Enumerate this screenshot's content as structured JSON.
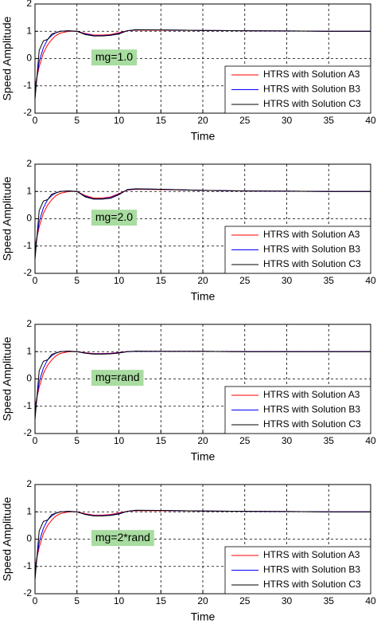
{
  "chart_data": [
    {
      "type": "line",
      "annotation": "mg=1.0",
      "xlabel": "Time",
      "ylabel": "Speed Amplitude",
      "x": [
        0,
        0.5,
        1,
        1.5,
        2,
        2.5,
        3,
        4,
        5,
        6,
        7,
        8,
        9,
        10,
        11,
        12,
        15,
        20,
        25,
        30,
        35,
        40
      ],
      "series": [
        {
          "name": "HTRS with Solution A3",
          "color": "#ff0000",
          "values": [
            -1.0,
            -0.3,
            0.2,
            0.5,
            0.7,
            0.85,
            0.93,
            1.0,
            1.0,
            0.92,
            0.86,
            0.86,
            0.88,
            0.95,
            1.02,
            1.04,
            1.04,
            1.03,
            1.02,
            1.01,
            1.0,
            1.0
          ]
        },
        {
          "name": "HTRS with Solution B3",
          "color": "#0000ff",
          "values": [
            -1.2,
            -0.1,
            0.4,
            0.7,
            0.85,
            0.95,
            1.0,
            1.02,
            1.0,
            0.9,
            0.84,
            0.84,
            0.86,
            0.92,
            1.02,
            1.05,
            1.05,
            1.03,
            1.02,
            1.01,
            1.0,
            1.0
          ]
        },
        {
          "name": "HTRS with Solution C3",
          "color": "#000000",
          "values": [
            -1.5,
            0.3,
            0.65,
            0.7,
            0.9,
            0.95,
            1.0,
            1.02,
            1.0,
            0.88,
            0.83,
            0.83,
            0.85,
            0.9,
            1.02,
            1.06,
            1.05,
            1.03,
            1.02,
            1.01,
            1.0,
            1.0
          ]
        }
      ],
      "xlim": [
        0,
        40
      ],
      "ylim": [
        -2,
        2
      ],
      "xticks": [
        0,
        5,
        10,
        15,
        20,
        25,
        30,
        35,
        40
      ],
      "yticks": [
        -2,
        -1,
        0,
        1,
        2
      ],
      "grid": true,
      "legend": "lower right"
    },
    {
      "type": "line",
      "annotation": "mg=2.0",
      "xlabel": "Time",
      "ylabel": "Speed Amplitude",
      "x": [
        0,
        0.5,
        1,
        1.5,
        2,
        2.5,
        3,
        4,
        5,
        6,
        7,
        8,
        9,
        10,
        11,
        12,
        15,
        20,
        25,
        30,
        35,
        40
      ],
      "series": [
        {
          "name": "HTRS with Solution A3",
          "color": "#ff0000",
          "values": [
            -1.0,
            -0.3,
            0.2,
            0.5,
            0.7,
            0.85,
            0.93,
            1.0,
            1.0,
            0.85,
            0.76,
            0.76,
            0.8,
            0.92,
            1.05,
            1.08,
            1.07,
            1.04,
            1.02,
            1.01,
            1.0,
            1.0
          ]
        },
        {
          "name": "HTRS with Solution B3",
          "color": "#0000ff",
          "values": [
            -1.2,
            -0.1,
            0.4,
            0.7,
            0.85,
            0.95,
            1.0,
            1.02,
            1.0,
            0.82,
            0.73,
            0.73,
            0.77,
            0.9,
            1.06,
            1.09,
            1.08,
            1.04,
            1.02,
            1.01,
            1.0,
            1.0
          ]
        },
        {
          "name": "HTRS with Solution C3",
          "color": "#000000",
          "values": [
            -1.5,
            0.3,
            0.65,
            0.7,
            0.9,
            0.95,
            1.0,
            1.02,
            1.0,
            0.8,
            0.72,
            0.72,
            0.75,
            0.88,
            1.07,
            1.1,
            1.08,
            1.04,
            1.02,
            1.01,
            1.0,
            1.0
          ]
        }
      ],
      "xlim": [
        0,
        40
      ],
      "ylim": [
        -2,
        2
      ],
      "xticks": [
        0,
        5,
        10,
        15,
        20,
        25,
        30,
        35,
        40
      ],
      "yticks": [
        -2,
        -1,
        0,
        1,
        2
      ],
      "grid": true,
      "legend": "lower right"
    },
    {
      "type": "line",
      "annotation": "mg=rand",
      "xlabel": "Time",
      "ylabel": "Speed Amplitude",
      "x": [
        0,
        0.5,
        1,
        1.5,
        2,
        2.5,
        3,
        4,
        5,
        6,
        7,
        8,
        9,
        10,
        11,
        12,
        15,
        20,
        25,
        30,
        35,
        40
      ],
      "series": [
        {
          "name": "HTRS with Solution A3",
          "color": "#ff0000",
          "values": [
            -1.0,
            -0.3,
            0.2,
            0.5,
            0.7,
            0.85,
            0.93,
            1.0,
            1.0,
            0.96,
            0.93,
            0.93,
            0.94,
            0.97,
            1.0,
            1.01,
            1.01,
            1.01,
            1.0,
            1.0,
            1.0,
            1.0
          ]
        },
        {
          "name": "HTRS with Solution B3",
          "color": "#0000ff",
          "values": [
            -1.2,
            -0.1,
            0.4,
            0.7,
            0.85,
            0.95,
            1.0,
            1.02,
            1.0,
            0.95,
            0.92,
            0.92,
            0.93,
            0.96,
            1.0,
            1.01,
            1.01,
            1.01,
            1.0,
            1.0,
            1.0,
            1.0
          ]
        },
        {
          "name": "HTRS with Solution C3",
          "color": "#000000",
          "values": [
            -1.5,
            0.3,
            0.65,
            0.7,
            0.9,
            0.95,
            1.0,
            1.02,
            1.0,
            0.94,
            0.91,
            0.91,
            0.92,
            0.95,
            1.0,
            1.02,
            1.01,
            1.01,
            1.0,
            1.0,
            1.0,
            1.0
          ]
        }
      ],
      "xlim": [
        0,
        40
      ],
      "ylim": [
        -2,
        2
      ],
      "xticks": [
        0,
        5,
        10,
        15,
        20,
        25,
        30,
        35,
        40
      ],
      "yticks": [
        -2,
        -1,
        0,
        1,
        2
      ],
      "grid": true,
      "legend": "lower right"
    },
    {
      "type": "line",
      "annotation": "mg=2*rand",
      "xlabel": "Time",
      "ylabel": "Speed Amplitude",
      "x": [
        0,
        0.5,
        1,
        1.5,
        2,
        2.5,
        3,
        4,
        5,
        6,
        7,
        8,
        9,
        10,
        11,
        12,
        15,
        20,
        25,
        30,
        35,
        40
      ],
      "series": [
        {
          "name": "HTRS with Solution A3",
          "color": "#ff0000",
          "values": [
            -1.0,
            -0.3,
            0.2,
            0.5,
            0.7,
            0.85,
            0.93,
            1.0,
            1.0,
            0.93,
            0.88,
            0.88,
            0.9,
            0.96,
            1.02,
            1.04,
            1.04,
            1.03,
            1.02,
            1.01,
            1.0,
            1.0
          ]
        },
        {
          "name": "HTRS with Solution B3",
          "color": "#0000ff",
          "values": [
            -1.2,
            -0.1,
            0.4,
            0.7,
            0.85,
            0.95,
            1.0,
            1.02,
            1.0,
            0.91,
            0.86,
            0.86,
            0.88,
            0.94,
            1.02,
            1.05,
            1.05,
            1.03,
            1.02,
            1.01,
            1.0,
            1.0
          ]
        },
        {
          "name": "HTRS with Solution C3",
          "color": "#000000",
          "values": [
            -1.5,
            0.3,
            0.65,
            0.7,
            0.9,
            0.95,
            1.0,
            1.02,
            1.0,
            0.9,
            0.85,
            0.85,
            0.87,
            0.92,
            1.02,
            1.06,
            1.05,
            1.03,
            1.02,
            1.01,
            1.0,
            1.0
          ]
        }
      ],
      "xlim": [
        0,
        40
      ],
      "ylim": [
        -2,
        2
      ],
      "xticks": [
        0,
        5,
        10,
        15,
        20,
        25,
        30,
        35,
        40
      ],
      "yticks": [
        -2,
        -1,
        0,
        1,
        2
      ],
      "grid": true,
      "legend": "lower right"
    }
  ]
}
